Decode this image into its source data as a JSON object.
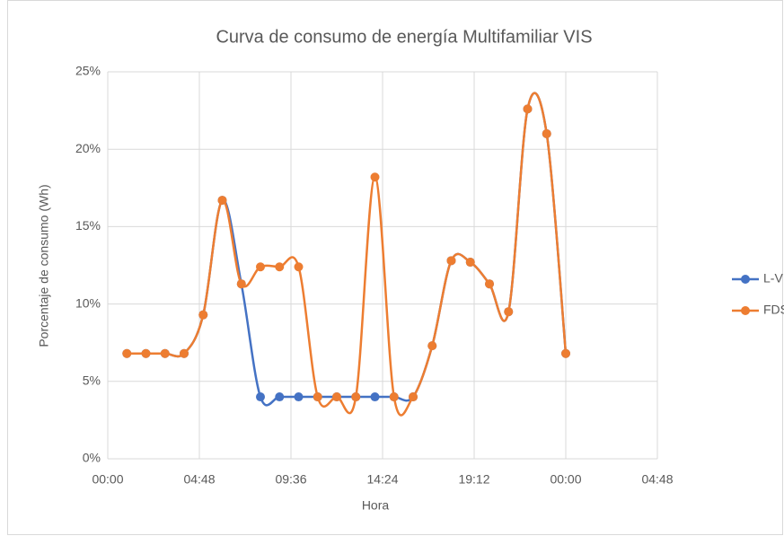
{
  "chart_data": {
    "type": "scatter-smooth",
    "title": "Curva de consumo de energía Multifamiliar VIS",
    "x_label": "Hora",
    "y_label": "Porcentaje de consumo (Wh)",
    "x": [
      1,
      2,
      3,
      4,
      5,
      6,
      7,
      8,
      9,
      10,
      11,
      12,
      13,
      14,
      15,
      16,
      17,
      18,
      19,
      20,
      21,
      22,
      23,
      24
    ],
    "series": [
      {
        "name": "L-V",
        "color": "#4472c4",
        "values": [
          6.8,
          6.8,
          6.8,
          6.8,
          9.3,
          16.7,
          11.3,
          4.0,
          4.0,
          4.0,
          4.0,
          4.0,
          4.0,
          4.0,
          4.0,
          4.0,
          7.3,
          12.8,
          12.7,
          11.3,
          9.5,
          22.6,
          21.0,
          6.8
        ]
      },
      {
        "name": "FDS",
        "color": "#ed7d31",
        "values": [
          6.8,
          6.8,
          6.8,
          6.8,
          9.3,
          16.7,
          11.3,
          12.4,
          12.4,
          12.4,
          4.0,
          4.0,
          4.0,
          18.2,
          4.0,
          4.0,
          7.3,
          12.8,
          12.7,
          11.3,
          9.5,
          22.6,
          21.0,
          6.8
        ]
      }
    ],
    "xlim": [
      0,
      28.8
    ],
    "xticks": [
      {
        "value": 0,
        "label": "00:00"
      },
      {
        "value": 4.8,
        "label": "04:48"
      },
      {
        "value": 9.6,
        "label": "09:36"
      },
      {
        "value": 14.4,
        "label": "14:24"
      },
      {
        "value": 19.2,
        "label": "19:12"
      },
      {
        "value": 24,
        "label": "00:00"
      },
      {
        "value": 28.8,
        "label": "04:48"
      }
    ],
    "ylim": [
      0,
      25
    ],
    "yticks": [
      {
        "value": 0,
        "label": "0%"
      },
      {
        "value": 5,
        "label": "5%"
      },
      {
        "value": 10,
        "label": "10%"
      },
      {
        "value": 15,
        "label": "15%"
      },
      {
        "value": 20,
        "label": "20%"
      },
      {
        "value": 25,
        "label": "25%"
      }
    ],
    "grid": true,
    "legend": "right"
  }
}
